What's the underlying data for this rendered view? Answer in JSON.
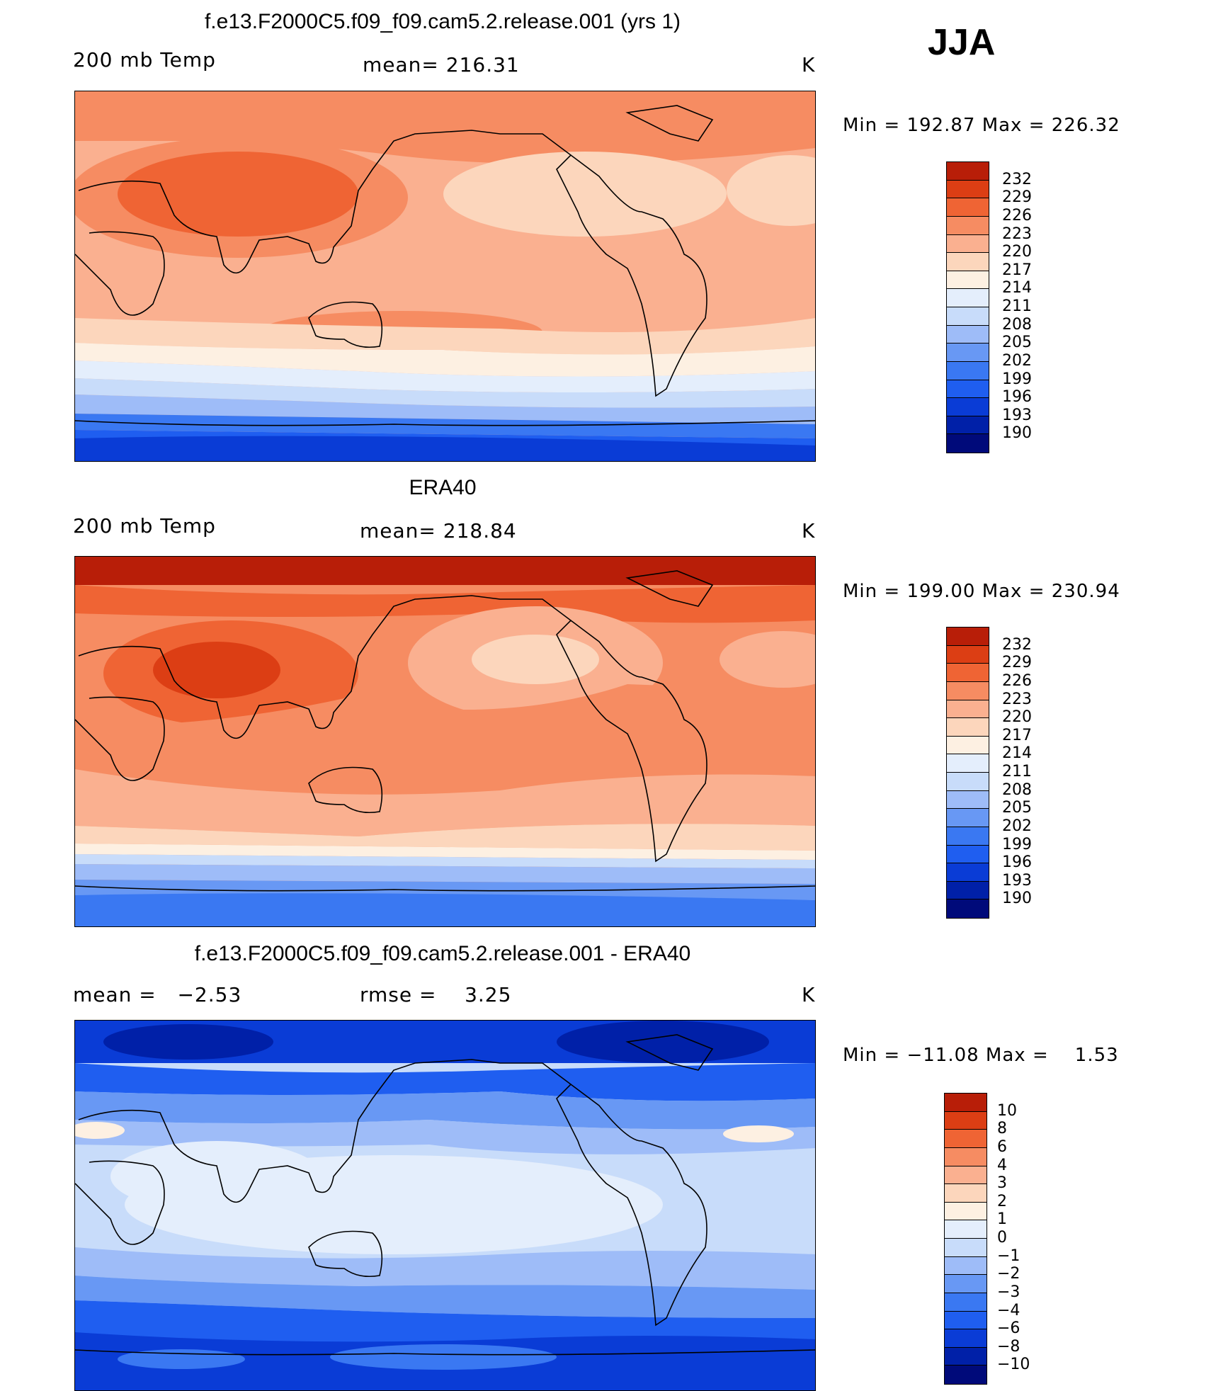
{
  "season": "JJA",
  "colors": {
    "temp_scale": [
      "#000a7a",
      "#0020a8",
      "#0a3cd6",
      "#1f5ef0",
      "#3a78f2",
      "#6898f4",
      "#9ebcf8",
      "#c8dcfa",
      "#e4eefc",
      "#fdf0e2",
      "#fcd6bc",
      "#fab090",
      "#f68c62",
      "#ef6434",
      "#dc3e14",
      "#b81e08",
      "#840404"
    ],
    "diff_scale": [
      "#000a7a",
      "#0020a8",
      "#0a3cd6",
      "#1f5ef0",
      "#3a78f2",
      "#6898f4",
      "#9ebcf8",
      "#c8dcfa",
      "#e4eefc",
      "#fdf0e2",
      "#fcd6bc",
      "#fab090",
      "#f68c62",
      "#ef6434",
      "#dc3e14",
      "#b81e08",
      "#840404"
    ]
  },
  "panels": [
    {
      "title": "f.e13.F2000C5.f09_f09.cam5.2.release.001 (yrs 1)",
      "left_label": "200 mb Temp",
      "center_label": "mean= 216.31",
      "units": "K",
      "minmax": "Min = 192.87 Max = 226.32",
      "colorbar_labels": [
        "232",
        "229",
        "226",
        "223",
        "220",
        "217",
        "214",
        "211",
        "208",
        "205",
        "202",
        "199",
        "196",
        "193",
        "190"
      ]
    },
    {
      "title": "ERA40",
      "left_label": "200 mb Temp",
      "center_label": "mean= 218.84",
      "units": "K",
      "minmax": "Min = 199.00 Max = 230.94",
      "colorbar_labels": [
        "232",
        "229",
        "226",
        "223",
        "220",
        "217",
        "214",
        "211",
        "208",
        "205",
        "202",
        "199",
        "196",
        "193",
        "190"
      ]
    },
    {
      "title": "f.e13.F2000C5.f09_f09.cam5.2.release.001 - ERA40",
      "left_label": "mean =   −2.53",
      "center_label": "rmse =    3.25",
      "units": "K",
      "minmax": "Min = −11.08 Max =    1.53",
      "colorbar_labels": [
        "10",
        "8",
        "6",
        "4",
        "3",
        "2",
        "1",
        "0",
        "−1",
        "−2",
        "−3",
        "−4",
        "−6",
        "−8",
        "−10"
      ]
    }
  ]
}
